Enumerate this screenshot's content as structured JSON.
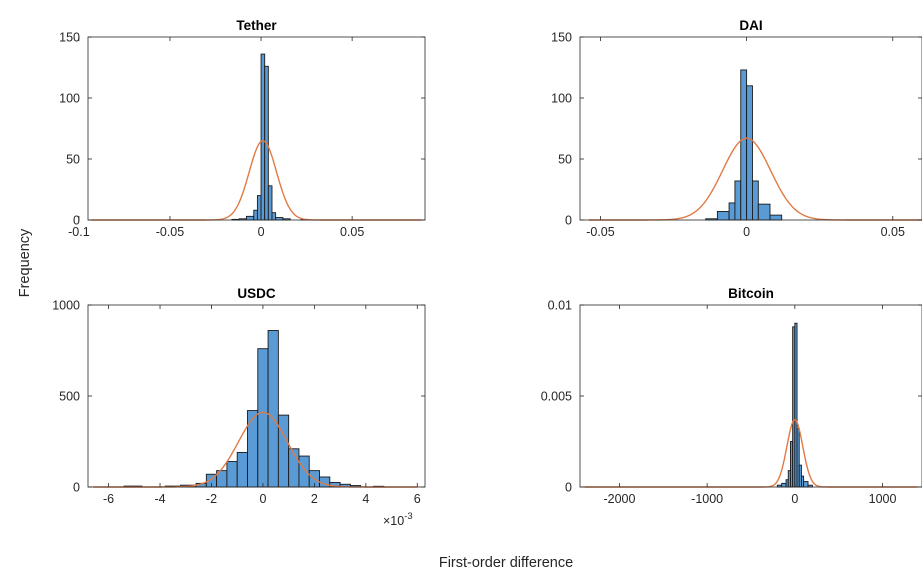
{
  "figure": {
    "ylabel": "Frequency",
    "xlabel": "First-order difference"
  },
  "chart_data": [
    {
      "type": "bar",
      "title": "Tether",
      "xlim": [
        -0.095,
        0.09
      ],
      "ylim": [
        0,
        150
      ],
      "xticks": [
        -0.1,
        -0.05,
        0,
        0.05
      ],
      "xtick_labels": [
        "-0.1",
        "-0.05",
        "0",
        "0.05"
      ],
      "yticks": [
        0,
        50,
        100,
        150
      ],
      "ytick_labels": [
        "0",
        "50",
        "100",
        "150"
      ],
      "bar_color": "#5b9bd5",
      "fit_color": "#e07a45",
      "bars": [
        {
          "x0": -0.016,
          "x1": -0.012,
          "y": 0.5
        },
        {
          "x0": -0.012,
          "x1": -0.008,
          "y": 1
        },
        {
          "x0": -0.008,
          "x1": -0.004,
          "y": 3
        },
        {
          "x0": -0.004,
          "x1": -0.002,
          "y": 8
        },
        {
          "x0": -0.002,
          "x1": 0.0,
          "y": 20
        },
        {
          "x0": 0.0,
          "x1": 0.002,
          "y": 136
        },
        {
          "x0": 0.002,
          "x1": 0.004,
          "y": 126
        },
        {
          "x0": 0.004,
          "x1": 0.006,
          "y": 28
        },
        {
          "x0": 0.006,
          "x1": 0.008,
          "y": 6
        },
        {
          "x0": 0.008,
          "x1": 0.012,
          "y": 2
        },
        {
          "x0": 0.012,
          "x1": 0.016,
          "y": 1
        },
        {
          "x0": 0.022,
          "x1": 0.026,
          "y": 0.5
        }
      ],
      "fit": {
        "mean": 0.001,
        "sd": 0.0075,
        "peak": 65,
        "x_from": -0.093,
        "x_to": 0.088
      }
    },
    {
      "type": "bar",
      "title": "DAI",
      "xlim": [
        -0.057,
        0.06
      ],
      "ylim": [
        0,
        150
      ],
      "xticks": [
        -0.05,
        0,
        0.05
      ],
      "xtick_labels": [
        "-0.05",
        "0",
        "0.05"
      ],
      "yticks": [
        0,
        50,
        100,
        150
      ],
      "ytick_labels": [
        "0",
        "50",
        "100",
        "150"
      ],
      "bar_color": "#5b9bd5",
      "fit_color": "#e07a45",
      "bars": [
        {
          "x0": -0.014,
          "x1": -0.01,
          "y": 1
        },
        {
          "x0": -0.01,
          "x1": -0.006,
          "y": 7
        },
        {
          "x0": -0.006,
          "x1": -0.004,
          "y": 14
        },
        {
          "x0": -0.004,
          "x1": -0.002,
          "y": 32
        },
        {
          "x0": -0.002,
          "x1": 0.0,
          "y": 123
        },
        {
          "x0": 0.0,
          "x1": 0.002,
          "y": 110
        },
        {
          "x0": 0.002,
          "x1": 0.004,
          "y": 32
        },
        {
          "x0": 0.004,
          "x1": 0.008,
          "y": 13
        },
        {
          "x0": 0.008,
          "x1": 0.012,
          "y": 4
        }
      ],
      "fit": {
        "mean": 0.0,
        "sd": 0.0082,
        "peak": 67,
        "x_from": -0.054,
        "x_to": 0.06
      }
    },
    {
      "type": "bar",
      "title": "USDC",
      "xlim": [
        -0.0068,
        0.0063
      ],
      "ylim": [
        0,
        1000
      ],
      "xticks": [
        -0.006,
        -0.004,
        -0.002,
        0,
        0.002,
        0.004,
        0.006
      ],
      "xtick_labels": [
        "-6",
        "-4",
        "-2",
        "0",
        "2",
        "4",
        "6"
      ],
      "exponent_label": "×10",
      "exponent_power": "-3",
      "yticks": [
        0,
        500,
        1000
      ],
      "ytick_labels": [
        "0",
        "500",
        "1000"
      ],
      "bar_color": "#5b9bd5",
      "fit_color": "#e07a45",
      "bars": [
        {
          "x0": -0.0054,
          "x1": -0.0047,
          "y": 5
        },
        {
          "x0": -0.0038,
          "x1": -0.0032,
          "y": 5
        },
        {
          "x0": -0.0032,
          "x1": -0.0026,
          "y": 10
        },
        {
          "x0": -0.0026,
          "x1": -0.0022,
          "y": 20
        },
        {
          "x0": -0.0022,
          "x1": -0.0018,
          "y": 70
        },
        {
          "x0": -0.0018,
          "x1": -0.0014,
          "y": 90
        },
        {
          "x0": -0.0014,
          "x1": -0.001,
          "y": 140
        },
        {
          "x0": -0.001,
          "x1": -0.0006,
          "y": 190
        },
        {
          "x0": -0.0006,
          "x1": -0.0002,
          "y": 420
        },
        {
          "x0": -0.0002,
          "x1": 0.0002,
          "y": 760
        },
        {
          "x0": 0.0002,
          "x1": 0.0006,
          "y": 860
        },
        {
          "x0": 0.0006,
          "x1": 0.001,
          "y": 395
        },
        {
          "x0": 0.001,
          "x1": 0.0014,
          "y": 210
        },
        {
          "x0": 0.0014,
          "x1": 0.0018,
          "y": 170
        },
        {
          "x0": 0.0018,
          "x1": 0.0022,
          "y": 90
        },
        {
          "x0": 0.0022,
          "x1": 0.0026,
          "y": 55
        },
        {
          "x0": 0.0026,
          "x1": 0.003,
          "y": 25
        },
        {
          "x0": 0.003,
          "x1": 0.0034,
          "y": 15
        },
        {
          "x0": 0.0034,
          "x1": 0.0038,
          "y": 8
        },
        {
          "x0": 0.0043,
          "x1": 0.0047,
          "y": 4
        }
      ],
      "fit": {
        "mean": 0.0,
        "sd": 0.00095,
        "peak": 410,
        "x_from": -0.0066,
        "x_to": 0.006
      }
    },
    {
      "type": "bar",
      "title": "Bitcoin",
      "xlim": [
        -2450,
        1450
      ],
      "ylim": [
        0,
        0.01
      ],
      "xticks": [
        -2000,
        -1000,
        0,
        1000
      ],
      "xtick_labels": [
        "-2000",
        "-1000",
        "0",
        "1000"
      ],
      "yticks": [
        0,
        0.005,
        0.01
      ],
      "ytick_labels": [
        "0",
        "0.005",
        "0.01"
      ],
      "bar_color": "#5b9bd5",
      "fit_color": "#e07a45",
      "bars": [
        {
          "x0": -200,
          "x1": -150,
          "y": 0.0001
        },
        {
          "x0": -150,
          "x1": -100,
          "y": 0.0002
        },
        {
          "x0": -100,
          "x1": -75,
          "y": 0.0004
        },
        {
          "x0": -75,
          "x1": -50,
          "y": 0.0009
        },
        {
          "x0": -50,
          "x1": -25,
          "y": 0.0025
        },
        {
          "x0": -25,
          "x1": 0,
          "y": 0.0088
        },
        {
          "x0": 0,
          "x1": 25,
          "y": 0.009
        },
        {
          "x0": 25,
          "x1": 50,
          "y": 0.0032
        },
        {
          "x0": 50,
          "x1": 75,
          "y": 0.0012
        },
        {
          "x0": 75,
          "x1": 100,
          "y": 0.0006
        },
        {
          "x0": 100,
          "x1": 150,
          "y": 0.0003
        },
        {
          "x0": 150,
          "x1": 200,
          "y": 0.0001
        }
      ],
      "fit": {
        "mean": 0,
        "sd": 90,
        "peak": 0.0037,
        "x_from": -2400,
        "x_to": 1400
      }
    }
  ]
}
